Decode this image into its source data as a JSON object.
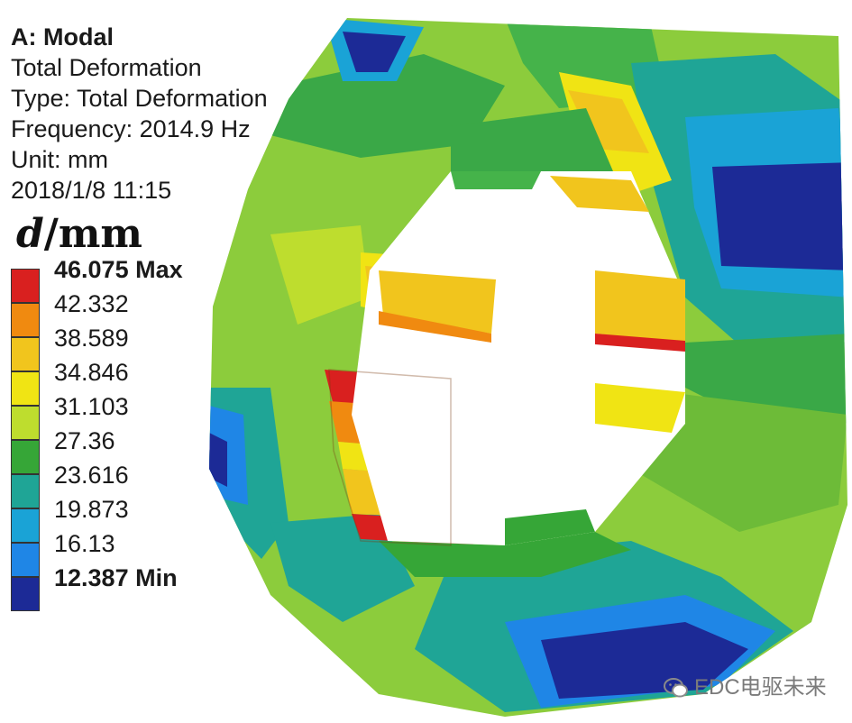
{
  "info": {
    "title": "A: Modal",
    "result": "Total Deformation",
    "type": "Type: Total Deformation",
    "frequency": "Frequency: 2014.9 Hz",
    "unit": "Unit: mm",
    "timestamp": "2018/1/8 11:15"
  },
  "unit_label": {
    "symbol": "d",
    "unit": "/mm"
  },
  "legend": {
    "levels": [
      "46.075 Max",
      "42.332",
      "38.589",
      "34.846",
      "31.103",
      "27.36",
      "23.616",
      "19.873",
      "16.13",
      "12.387 Min"
    ],
    "colors": [
      "#d9201f",
      "#f08a10",
      "#f1c51d",
      "#f0e414",
      "#bedd2e",
      "#36a637",
      "#1fa596",
      "#1aa3d6",
      "#1f86e6",
      "#1c2a96"
    ]
  },
  "watermark": {
    "text": "EDC电驱未来",
    "icon": "wechat-icon"
  }
}
